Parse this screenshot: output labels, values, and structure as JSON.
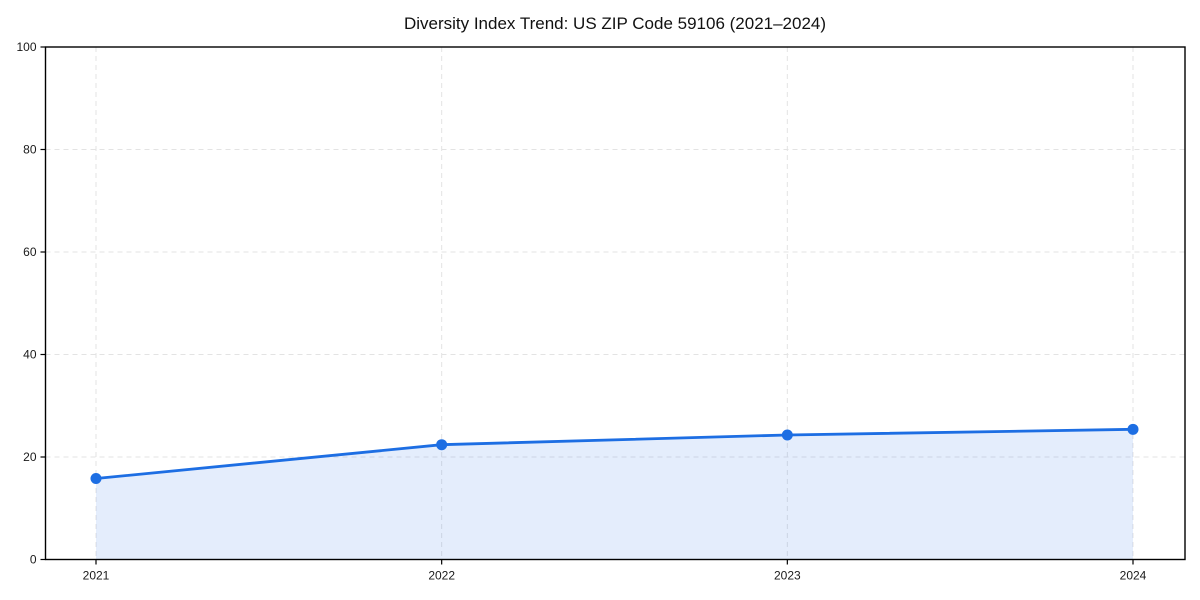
{
  "chart_data": {
    "type": "area",
    "title": "Diversity Index Trend: US ZIP Code 59106 (2021–2024)",
    "x": [
      "2021",
      "2022",
      "2023",
      "2024"
    ],
    "series": [
      {
        "name": "Diversity Index",
        "values": [
          15.8,
          22.4,
          24.3,
          25.4
        ]
      }
    ],
    "xlabel": "",
    "ylabel": "",
    "ylim": [
      0,
      100
    ],
    "yticks": [
      0,
      20,
      40,
      60,
      80,
      100
    ],
    "grid": "dashed both axes",
    "legend_position": "none",
    "colors": {
      "line": "#1d6ee3",
      "marker": "#1d6ee3",
      "fill": "rgba(29,110,227,0.12)",
      "grid": "#e3e3e3",
      "frame": "#000000",
      "tick_text": "#1a1a1a",
      "title_text": "#111111",
      "background": "#ffffff"
    }
  }
}
